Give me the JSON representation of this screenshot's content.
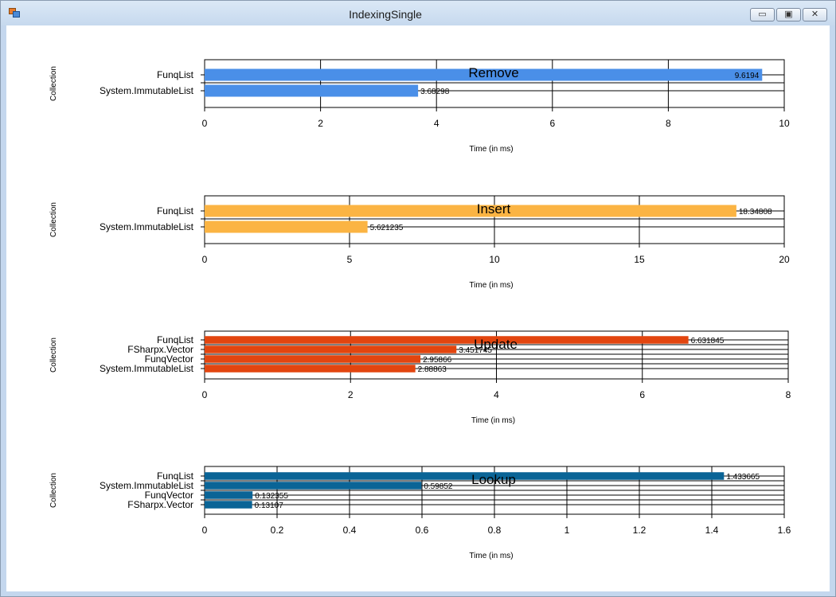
{
  "window": {
    "title": "IndexingSingle",
    "controls": {
      "minimize": "▭",
      "maximize": "▣",
      "close": "✕"
    }
  },
  "chart_data": [
    {
      "type": "bar",
      "orientation": "horizontal",
      "title": "Remove",
      "xlabel": "Time (in ms)",
      "ylabel": "Collection",
      "categories": [
        "FunqList",
        "System.ImmutableList"
      ],
      "values": [
        9.6194,
        3.68298
      ],
      "value_labels": [
        "9.6194",
        "3.68298"
      ],
      "xlim": [
        0,
        10
      ],
      "xticks": [
        0,
        2,
        4,
        6,
        8,
        10
      ],
      "color": "#4a8fe8",
      "grid": true
    },
    {
      "type": "bar",
      "orientation": "horizontal",
      "title": "Insert",
      "xlabel": "Time (in ms)",
      "ylabel": "Collection",
      "categories": [
        "FunqList",
        "System.ImmutableList"
      ],
      "values": [
        18.34808,
        5.621235
      ],
      "value_labels": [
        "18.34808",
        "5.621235"
      ],
      "xlim": [
        0,
        20
      ],
      "xticks": [
        0,
        5,
        10,
        15,
        20
      ],
      "color": "#fbb443",
      "grid": true
    },
    {
      "type": "bar",
      "orientation": "horizontal",
      "title": "Update",
      "xlabel": "Time (in ms)",
      "ylabel": "Collection",
      "categories": [
        "FunqList",
        "FSharpx.Vector",
        "FunqVector",
        "System.ImmutableList"
      ],
      "values": [
        6.631845,
        3.451745,
        2.95866,
        2.88863
      ],
      "value_labels": [
        "6.631845",
        "3.451745",
        "2.95866",
        "2.88863"
      ],
      "xlim": [
        0,
        8
      ],
      "xticks": [
        0,
        2,
        4,
        6,
        8
      ],
      "color": "#e2450f",
      "grid": true
    },
    {
      "type": "bar",
      "orientation": "horizontal",
      "title": "Lookup",
      "xlabel": "Time (in ms)",
      "ylabel": "Collection",
      "categories": [
        "FunqList",
        "System.ImmutableList",
        "FunqVector",
        "FSharpx.Vector"
      ],
      "values": [
        1.433665,
        0.59852,
        0.132355,
        0.13107
      ],
      "value_labels": [
        "1.433665",
        "0.59852",
        "0.132355",
        "0.13107"
      ],
      "xlim": [
        0,
        1.6
      ],
      "xticks": [
        0,
        0.2,
        0.4,
        0.6,
        0.8,
        1,
        1.2,
        1.4,
        1.6
      ],
      "color": "#0a6496",
      "grid": true
    }
  ]
}
